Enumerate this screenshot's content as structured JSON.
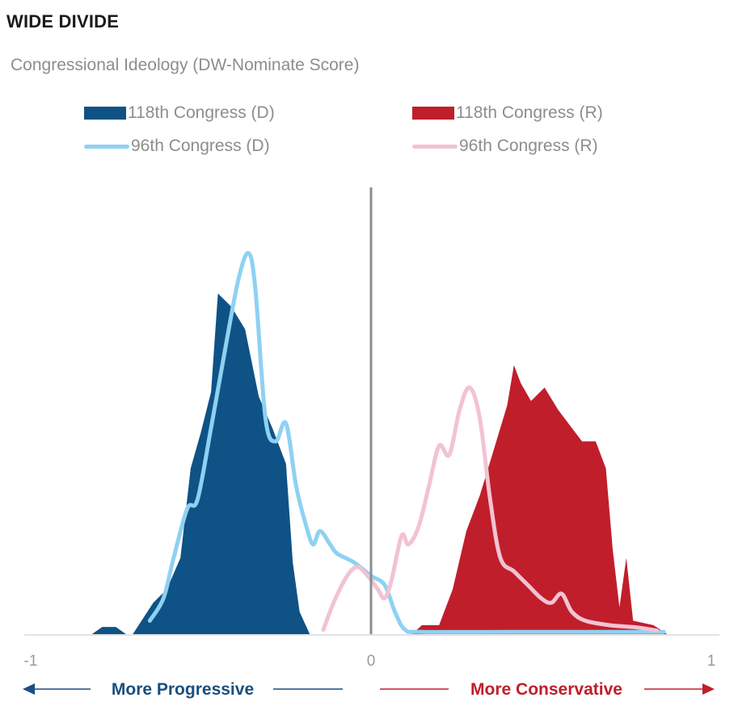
{
  "header": {
    "title": "WIDE DIVIDE",
    "subtitle": "Congressional Ideology (DW-Nominate Score)"
  },
  "legend": [
    {
      "label": "118th Congress (D)",
      "style": "area",
      "color": "#0f5286"
    },
    {
      "label": "118th Congress (R)",
      "style": "area",
      "color": "#c01e2a"
    },
    {
      "label": "96th Congress (D)",
      "style": "line",
      "color": "#8ed1f3"
    },
    {
      "label": "96th Congress (R)",
      "style": "line",
      "color": "#f2c3d2"
    }
  ],
  "annotations": {
    "left_arrow": "More Progressive",
    "right_arrow": "More Conservative",
    "left_color": "#1a4f7f",
    "right_color": "#c01e2a"
  },
  "chart_data": {
    "type": "area",
    "title": "Congressional Ideology (DW-Nominate Score)",
    "xlim": [
      -1,
      1
    ],
    "ylim": [
      0,
      1.0
    ],
    "x_ticks": [
      "-1",
      "0",
      "1"
    ],
    "center_line": 0,
    "series": [
      {
        "name": "118th Congress (D)",
        "kind": "area",
        "color": "#0f5286",
        "points": [
          [
            -0.82,
            0
          ],
          [
            -0.79,
            0.016
          ],
          [
            -0.75,
            0.016
          ],
          [
            -0.72,
            0
          ],
          [
            -0.7,
            0
          ],
          [
            -0.64,
            0.07
          ],
          [
            -0.6,
            0.1
          ],
          [
            -0.56,
            0.17
          ],
          [
            -0.53,
            0.37
          ],
          [
            -0.5,
            0.45
          ],
          [
            -0.47,
            0.54
          ],
          [
            -0.45,
            0.76
          ],
          [
            -0.41,
            0.73
          ],
          [
            -0.37,
            0.68
          ],
          [
            -0.33,
            0.53
          ],
          [
            -0.29,
            0.46
          ],
          [
            -0.25,
            0.38
          ],
          [
            -0.23,
            0.16
          ],
          [
            -0.21,
            0.05
          ],
          [
            -0.18,
            0
          ]
        ]
      },
      {
        "name": "118th Congress (R)",
        "kind": "area",
        "color": "#c01e2a",
        "points": [
          [
            0.12,
            0
          ],
          [
            0.15,
            0.02
          ],
          [
            0.2,
            0.02
          ],
          [
            0.24,
            0.1
          ],
          [
            0.28,
            0.23
          ],
          [
            0.32,
            0.31
          ],
          [
            0.36,
            0.41
          ],
          [
            0.4,
            0.51
          ],
          [
            0.42,
            0.6
          ],
          [
            0.44,
            0.56
          ],
          [
            0.47,
            0.52
          ],
          [
            0.51,
            0.55
          ],
          [
            0.55,
            0.5
          ],
          [
            0.59,
            0.46
          ],
          [
            0.62,
            0.43
          ],
          [
            0.66,
            0.43
          ],
          [
            0.69,
            0.37
          ],
          [
            0.71,
            0.19
          ],
          [
            0.73,
            0.06
          ],
          [
            0.75,
            0.17
          ],
          [
            0.77,
            0.03
          ],
          [
            0.83,
            0.02
          ],
          [
            0.87,
            0
          ]
        ]
      },
      {
        "name": "96th Congress (D)",
        "kind": "line",
        "color": "#8ed1f3",
        "points": [
          [
            -0.65,
            0.03
          ],
          [
            -0.61,
            0.08
          ],
          [
            -0.58,
            0.17
          ],
          [
            -0.54,
            0.28
          ],
          [
            -0.51,
            0.3
          ],
          [
            -0.47,
            0.46
          ],
          [
            -0.43,
            0.63
          ],
          [
            -0.39,
            0.79
          ],
          [
            -0.36,
            0.85
          ],
          [
            -0.34,
            0.77
          ],
          [
            -0.31,
            0.48
          ],
          [
            -0.28,
            0.43
          ],
          [
            -0.25,
            0.47
          ],
          [
            -0.22,
            0.33
          ],
          [
            -0.19,
            0.24
          ],
          [
            -0.17,
            0.2
          ],
          [
            -0.15,
            0.23
          ],
          [
            -0.12,
            0.2
          ],
          [
            -0.1,
            0.18
          ],
          [
            -0.05,
            0.16
          ],
          [
            0,
            0.13
          ],
          [
            0.04,
            0.11
          ],
          [
            0.07,
            0.05
          ],
          [
            0.1,
            0.01
          ],
          [
            0.15,
            0.005
          ],
          [
            0.4,
            0.005
          ],
          [
            0.86,
            0.005
          ]
        ]
      },
      {
        "name": "96th Congress (R)",
        "kind": "line",
        "color": "#f2c3d2",
        "points": [
          [
            -0.14,
            0.01
          ],
          [
            -0.11,
            0.07
          ],
          [
            -0.07,
            0.13
          ],
          [
            -0.04,
            0.15
          ],
          [
            -0.01,
            0.13
          ],
          [
            0.02,
            0.1
          ],
          [
            0.04,
            0.08
          ],
          [
            0.06,
            0.12
          ],
          [
            0.09,
            0.22
          ],
          [
            0.11,
            0.2
          ],
          [
            0.14,
            0.24
          ],
          [
            0.17,
            0.33
          ],
          [
            0.2,
            0.42
          ],
          [
            0.23,
            0.4
          ],
          [
            0.26,
            0.5
          ],
          [
            0.29,
            0.55
          ],
          [
            0.32,
            0.48
          ],
          [
            0.35,
            0.3
          ],
          [
            0.38,
            0.17
          ],
          [
            0.42,
            0.14
          ],
          [
            0.46,
            0.11
          ],
          [
            0.5,
            0.08
          ],
          [
            0.53,
            0.07
          ],
          [
            0.56,
            0.09
          ],
          [
            0.59,
            0.05
          ],
          [
            0.63,
            0.03
          ],
          [
            0.7,
            0.02
          ],
          [
            0.78,
            0.015
          ],
          [
            0.84,
            0.008
          ]
        ]
      }
    ]
  }
}
